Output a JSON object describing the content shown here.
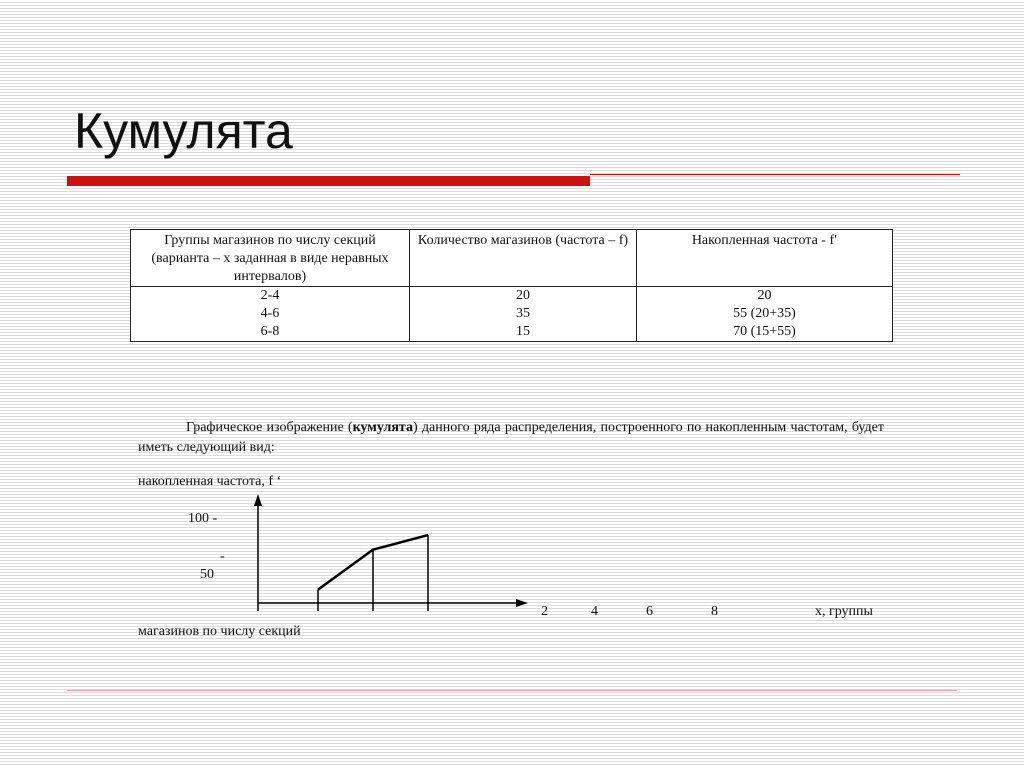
{
  "title": "Кумулята",
  "table": {
    "headers": [
      "Группы магазинов по числу секций (варианта – x заданная в виде неравных интервалов)",
      "Количество магазинов (частота – f)",
      "Накопленная частота - f′"
    ],
    "rows": [
      [
        "2-4",
        "20",
        "20"
      ],
      [
        "4-6",
        "35",
        "55 (20+35)"
      ],
      [
        "6-8",
        "15",
        "70 (15+55)"
      ]
    ]
  },
  "paragraph": {
    "before": "Графическое изображение (",
    "bold": "кумулята",
    "after": ") данного ряда распределения, построенного по накопленным частотам, будет иметь следующий вид:"
  },
  "chart_data": {
    "type": "line",
    "ylabel": "накопленная частота, f ‘",
    "xlabel_part1": "x, группы",
    "xlabel_part2": "магазинов по числу секций",
    "y_ticks": [
      "100  -",
      "-",
      "50"
    ],
    "x_ticks": [
      "2",
      "4",
      "6",
      "8"
    ],
    "x": [
      4,
      6,
      8
    ],
    "y": [
      20,
      55,
      70
    ]
  }
}
